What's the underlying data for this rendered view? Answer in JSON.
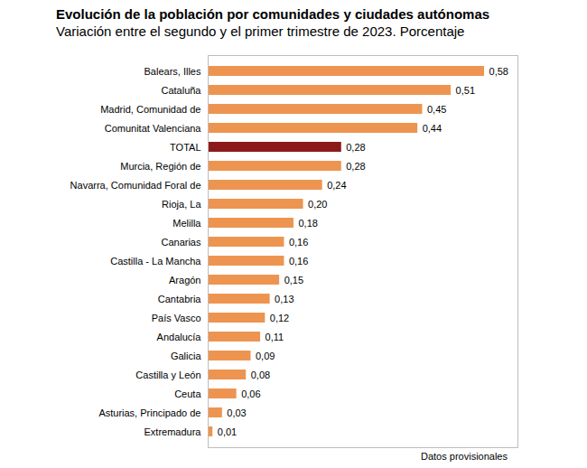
{
  "chart_data": {
    "type": "bar",
    "orientation": "horizontal",
    "title": "Evolución de la población por comunidades y ciudades autónomas",
    "subtitle": "Variación entre el segundo y el primer trimestre de 2023. Porcentaje",
    "caption": "Datos provisionales",
    "categories": [
      "Balears, Illes",
      "Cataluña",
      "Madrid, Comunidad de",
      "Comunitat Valenciana",
      "TOTAL",
      "Murcia, Región de",
      "Navarra, Comunidad Foral de",
      "Rioja, La",
      "Melilla",
      "Canarias",
      "Castilla - La Mancha",
      "Aragón",
      "Cantabria",
      "País Vasco",
      "Andalucía",
      "Galicia",
      "Castilla y León",
      "Ceuta",
      "Asturias, Principado de",
      "Extremadura"
    ],
    "values": [
      0.58,
      0.51,
      0.45,
      0.44,
      0.28,
      0.28,
      0.24,
      0.2,
      0.18,
      0.16,
      0.16,
      0.15,
      0.13,
      0.12,
      0.11,
      0.09,
      0.08,
      0.06,
      0.03,
      0.01
    ],
    "value_labels": [
      "0,58",
      "0,51",
      "0,45",
      "0,44",
      "0,28",
      "0,28",
      "0,24",
      "0,20",
      "0,18",
      "0,16",
      "0,16",
      "0,15",
      "0,13",
      "0,12",
      "0,11",
      "0,09",
      "0,08",
      "0,06",
      "0,03",
      "0,01"
    ],
    "colors": [
      "#ED9550",
      "#ED9550",
      "#ED9550",
      "#ED9550",
      "#8C1A1A",
      "#ED9550",
      "#ED9550",
      "#ED9550",
      "#ED9550",
      "#ED9550",
      "#ED9550",
      "#ED9550",
      "#ED9550",
      "#ED9550",
      "#ED9550",
      "#ED9550",
      "#ED9550",
      "#ED9550",
      "#ED9550",
      "#ED9550"
    ],
    "xlim": [
      0,
      0.65
    ],
    "xticks": [],
    "grid": false,
    "data_labels": true,
    "tick_labels": "y"
  }
}
